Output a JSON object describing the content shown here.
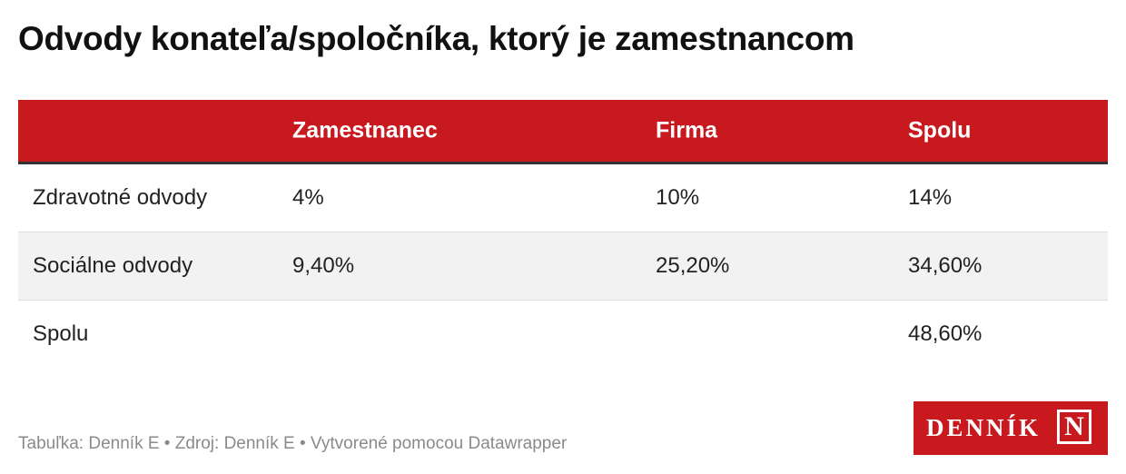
{
  "header": {
    "title": "Odvody konateľa/spoločníka, ktorý je zamestnancom"
  },
  "table": {
    "columns": [
      "Zamestnanec",
      "Firma",
      "Spolu"
    ],
    "rows": [
      {
        "label": "Zdravotné odvody",
        "cells": [
          "4%",
          "10%",
          "14%"
        ]
      },
      {
        "label": "Sociálne odvody",
        "cells": [
          "9,40%",
          "25,20%",
          "34,60%"
        ]
      },
      {
        "label": "Spolu",
        "cells": [
          null,
          null,
          "48,60%"
        ]
      }
    ]
  },
  "footer": {
    "note": "Tabuľka: Denník E • Zdroj: Denník E • Vytvorené pomocou Datawrapper",
    "logo": {
      "word": "DENNÍK",
      "mark": "N"
    }
  }
}
